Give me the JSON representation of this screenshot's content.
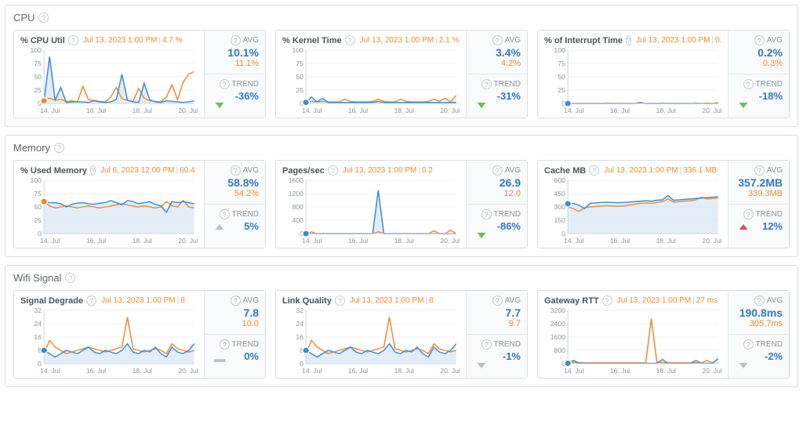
{
  "sections": [
    {
      "title": "CPU",
      "panels": [
        {
          "title": "% CPU Util",
          "hover_time": "Jul 13, 2023 1:00 PM",
          "hover_val": "4.7 %",
          "avg1": "10.1%",
          "avg2": "11.1%",
          "trend": "-36%",
          "trend_dir": "down-green",
          "ymax": 100,
          "ytick_step": 25,
          "xlabels": [
            "14. Jul",
            "16. Jul",
            "18. Jul",
            "20. Jul"
          ],
          "blue": [
            4,
            88,
            6,
            30,
            2,
            3,
            3,
            3,
            2,
            5,
            3,
            2,
            3,
            8,
            55,
            6,
            3,
            2,
            38,
            7,
            3,
            2,
            5,
            4,
            3,
            2,
            3,
            5
          ],
          "orange": [
            5,
            10,
            6,
            8,
            4,
            5,
            3,
            32,
            7,
            6,
            4,
            3,
            12,
            30,
            9,
            6,
            4,
            28,
            10,
            5,
            4,
            3,
            12,
            35,
            7,
            40,
            55,
            60
          ],
          "marker_x": 0,
          "fill": true,
          "marker_orange_x": 0
        },
        {
          "title": "% Kernel Time",
          "hover_time": "Jul 13, 2023 1:00 PM",
          "hover_val": "2.1 %",
          "avg1": "3.4%",
          "avg2": "4.2%",
          "trend": "-31%",
          "trend_dir": "down-green",
          "ymax": 100,
          "ytick_step": 25,
          "xlabels": [
            "14. Jul",
            "16. Jul",
            "18. Jul",
            "20. Jul"
          ],
          "blue": [
            2,
            12,
            3,
            10,
            2,
            2,
            2,
            2,
            2,
            2,
            2,
            2,
            2,
            4,
            2,
            2,
            2,
            2,
            2,
            2,
            2,
            2,
            2,
            2,
            2,
            2,
            2,
            2
          ],
          "orange": [
            3,
            4,
            3,
            4,
            3,
            3,
            3,
            8,
            4,
            3,
            3,
            3,
            4,
            8,
            4,
            3,
            3,
            8,
            4,
            3,
            3,
            3,
            4,
            8,
            4,
            10,
            3,
            15
          ],
          "marker_x": 0,
          "fill": true
        },
        {
          "title": "% of Interrupt Time",
          "hover_time": "Jul 13, 2023 1:00 PM",
          "hover_val": "0.1 %",
          "avg1": "0.2%",
          "avg2": "0.3%",
          "trend": "-18%",
          "trend_dir": "down-green",
          "ymax": 100,
          "ytick_step": 25,
          "xlabels": [
            "14. Jul",
            "16. Jul",
            "18. Jul",
            "20. Jul"
          ],
          "blue": [
            0,
            0,
            0,
            0,
            0,
            0,
            0,
            0,
            0,
            0,
            0,
            0,
            0,
            2,
            0,
            0,
            0,
            0,
            0,
            0,
            0,
            0,
            0,
            0,
            0,
            0,
            0,
            0
          ],
          "orange": [
            0,
            0,
            0,
            0,
            0,
            0,
            0,
            1,
            0,
            0,
            0,
            0,
            0,
            1,
            0,
            0,
            0,
            1,
            0,
            0,
            0,
            0,
            0,
            1,
            0,
            1,
            0,
            2
          ],
          "marker_x": 0,
          "fill": true
        }
      ]
    },
    {
      "title": "Memory",
      "panels": [
        {
          "title": "% Used Memory",
          "hover_time": "Jul 6, 2023 12:00 PM",
          "hover_val": "60.4 %",
          "avg1": "58.8%",
          "avg2": "54.2%",
          "trend": "5%",
          "trend_dir": "up-grey",
          "ymax": 100,
          "ytick_step": 25,
          "xlabels": [
            "14. Jul",
            "16. Jul",
            "18. Jul",
            "20. Jul"
          ],
          "blue": [
            60,
            58,
            58,
            56,
            50,
            55,
            57,
            58,
            56,
            55,
            57,
            58,
            62,
            58,
            54,
            62,
            60,
            56,
            58,
            60,
            55,
            52,
            40,
            60,
            58,
            60,
            58,
            56
          ],
          "orange": [
            60,
            52,
            48,
            50,
            52,
            50,
            48,
            50,
            52,
            50,
            48,
            50,
            52,
            54,
            56,
            54,
            52,
            50,
            52,
            50,
            48,
            50,
            60,
            52,
            50,
            62,
            50,
            48
          ],
          "marker_x": 0,
          "marker_orange_x": 0,
          "fill": true
        },
        {
          "title": "Pages/sec",
          "hover_time": "Jul 13, 2023 1:00 PM",
          "hover_val": "0.2",
          "avg1": "26.9",
          "avg2": "12.0",
          "trend": "-86%",
          "trend_dir": "down-green",
          "ymax": 1600,
          "ytick_step": 400,
          "xlabels": [
            "14. Jul",
            "16. Jul",
            "18. Jul",
            "20. Jul"
          ],
          "blue": [
            0,
            0,
            0,
            0,
            0,
            0,
            0,
            0,
            0,
            0,
            0,
            0,
            0,
            1300,
            0,
            0,
            0,
            0,
            0,
            0,
            0,
            0,
            0,
            0,
            0,
            0,
            0,
            0
          ],
          "orange": [
            0,
            50,
            0,
            0,
            0,
            0,
            0,
            0,
            0,
            0,
            0,
            0,
            0,
            60,
            0,
            0,
            0,
            0,
            0,
            0,
            0,
            0,
            0,
            80,
            0,
            0,
            100,
            0
          ],
          "marker_x": 0,
          "fill": true
        },
        {
          "title": "Cache MB",
          "hover_time": "Jul 13, 2023 1:00 PM",
          "hover_val": "336.1 MB",
          "avg1": "357.2MB",
          "avg2": "339.3MB",
          "trend": "12%",
          "trend_dir": "up-red",
          "ymax": 600,
          "ytick_step": 150,
          "xlabels": [
            "14. Jul",
            "16. Jul",
            "18. Jul",
            "20. Jul"
          ],
          "blue": [
            336,
            340,
            320,
            280,
            340,
            345,
            350,
            352,
            350,
            348,
            350,
            355,
            360,
            365,
            370,
            365,
            375,
            380,
            430,
            375,
            380,
            385,
            390,
            395,
            400,
            405,
            410,
            415
          ],
          "orange": [
            300,
            280,
            250,
            290,
            300,
            305,
            310,
            315,
            310,
            308,
            310,
            320,
            330,
            340,
            345,
            340,
            350,
            360,
            390,
            355,
            360,
            365,
            370,
            380,
            410,
            390,
            395,
            400
          ],
          "marker_x": 0,
          "fill": true
        }
      ]
    },
    {
      "title": "Wifi Signal",
      "panels": [
        {
          "title": "Signal Degrade",
          "hover_time": "Jul 13, 2023 1:00 PM",
          "hover_val": "8",
          "avg1": "7.8",
          "avg2": "10.0",
          "trend": "0%",
          "trend_dir": "flat-grey",
          "ymax": 32,
          "ytick_step": 8,
          "xlabels": [
            "14. Jul",
            "16. Jul",
            "18. Jul",
            "20. Jul"
          ],
          "blue": [
            8,
            6,
            4,
            6,
            8,
            7,
            6,
            8,
            10,
            7,
            6,
            8,
            7,
            6,
            8,
            12,
            7,
            6,
            8,
            7,
            10,
            6,
            4,
            10,
            7,
            6,
            8,
            12
          ],
          "orange": [
            6,
            14,
            10,
            8,
            6,
            7,
            8,
            9,
            10,
            9,
            8,
            7,
            8,
            9,
            10,
            28,
            9,
            8,
            7,
            8,
            9,
            8,
            6,
            12,
            9,
            8,
            7,
            8
          ],
          "marker_x": 0,
          "fill": true
        },
        {
          "title": "Link Quality",
          "hover_time": "Jul 13, 2023 1:00 PM",
          "hover_val": "8",
          "avg1": "7.7",
          "avg2": "9.7",
          "trend": "-1%",
          "trend_dir": "down-grey",
          "ymax": 32,
          "ytick_step": 8,
          "xlabels": [
            "14. Jul",
            "16. Jul",
            "18. Jul",
            "20. Jul"
          ],
          "blue": [
            8,
            6,
            4,
            6,
            8,
            7,
            6,
            8,
            10,
            7,
            6,
            8,
            7,
            6,
            8,
            12,
            7,
            6,
            8,
            7,
            10,
            6,
            4,
            10,
            7,
            6,
            8,
            12
          ],
          "orange": [
            6,
            14,
            10,
            8,
            6,
            7,
            8,
            9,
            10,
            9,
            8,
            7,
            8,
            9,
            10,
            28,
            9,
            8,
            7,
            8,
            9,
            8,
            6,
            12,
            9,
            8,
            7,
            8
          ],
          "marker_x": 0,
          "fill": true
        },
        {
          "title": "Gateway RTT",
          "hover_time": "Jul 13, 2023 1:00 PM",
          "hover_val": "27 ms",
          "avg1": "190.8ms",
          "avg2": "305.7ms",
          "trend": "-2%",
          "trend_dir": "down-grey",
          "ymax": 3200,
          "ytick_step": 800,
          "xlabels": [
            "14. Jul",
            "16. Jul",
            "18. Jul",
            "20. Jul"
          ],
          "blue": [
            27,
            200,
            50,
            30,
            27,
            27,
            27,
            27,
            27,
            27,
            27,
            27,
            27,
            27,
            27,
            27,
            27,
            250,
            30,
            27,
            27,
            27,
            27,
            200,
            27,
            27,
            27,
            300
          ],
          "orange": [
            50,
            80,
            60,
            50,
            50,
            50,
            50,
            50,
            50,
            50,
            50,
            50,
            50,
            50,
            50,
            2700,
            100,
            60,
            50,
            50,
            50,
            50,
            50,
            60,
            50,
            200,
            50,
            300
          ],
          "marker_x": 0,
          "fill": true
        }
      ]
    }
  ],
  "colors": {
    "blue": "#3b8ad9",
    "orange": "#ec8b2f",
    "grid": "#eef1f4",
    "text": "#5a6570"
  }
}
